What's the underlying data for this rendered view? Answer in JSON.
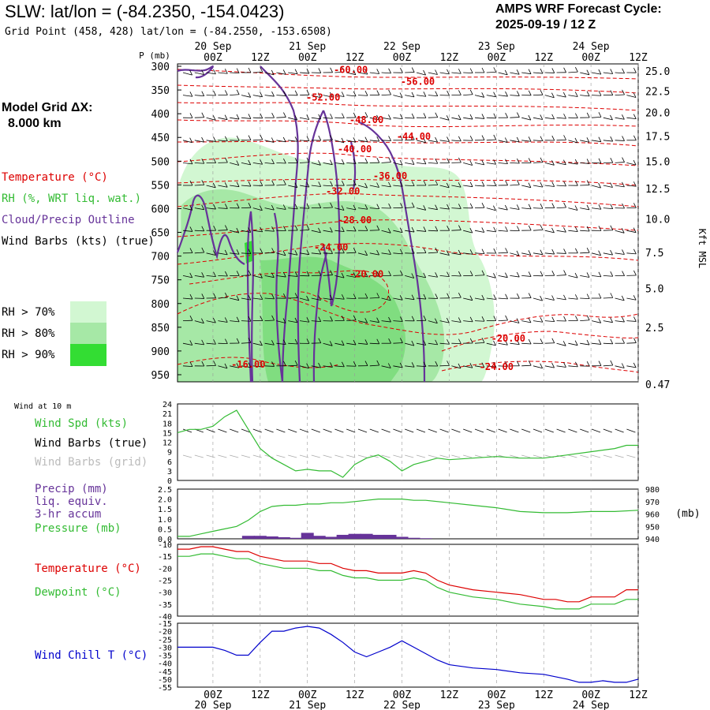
{
  "header": {
    "title": "SLW:  lat/lon = (-84.2350, -154.0423)",
    "grid_point": "Grid Point (458, 428) lat/lon = (-84.2550, -153.6508)",
    "cycle_line1": "AMPS WRF Forecast Cycle:",
    "cycle_line2": "2025-09-19 / 12  Z"
  },
  "sidebar": {
    "model_grid_label": "Model Grid ΔX:",
    "model_grid_value": "8.000 km",
    "temperature_label": "Temperature (°C)",
    "rh_label": "RH (%, WRT liq. wat.)",
    "cloud_label": "Cloud/Precip Outline",
    "wind_barbs_label": "Wind Barbs (kts) (true)",
    "rh_legend": [
      {
        "label": "RH > 70%",
        "color": "#d2f7d2"
      },
      {
        "label": "RH > 80%",
        "color": "#a6e8a6"
      },
      {
        "label": "RH > 90%",
        "color": "#33dd33"
      }
    ]
  },
  "colors": {
    "temperature": "#dd0000",
    "rh": "#33bb33",
    "cloud": "#663399",
    "wind": "#000000",
    "wind_grid": "#aaaaaa",
    "wind_chill": "#0000cc",
    "precip": "#663399"
  },
  "time_axis": {
    "ticks": [
      "00Z",
      "12Z",
      "00Z",
      "12Z",
      "00Z",
      "12Z",
      "00Z",
      "12Z",
      "00Z",
      "12Z"
    ],
    "tick_hours": [
      12,
      24,
      36,
      48,
      60,
      72,
      84,
      96,
      108,
      120
    ],
    "date_labels": [
      {
        "label": "20 Sep",
        "hour": 12
      },
      {
        "label": "21 Sep",
        "hour": 36
      },
      {
        "label": "22 Sep",
        "hour": 60
      },
      {
        "label": "23 Sep",
        "hour": 84
      },
      {
        "label": "24 Sep",
        "hour": 108
      }
    ],
    "hour_range": [
      3,
      120
    ]
  },
  "chart_data": [
    {
      "type": "contour",
      "title": "Vertical cross-section",
      "ylabel": "P (mb)",
      "y2label": "Kft MSL",
      "pressure_ticks": [
        300,
        350,
        400,
        450,
        500,
        550,
        600,
        650,
        700,
        750,
        800,
        850,
        900,
        950
      ],
      "pressure_range": [
        295,
        965
      ],
      "height_ticks": [
        {
          "label": "25.0",
          "p": 310
        },
        {
          "label": "22.5",
          "p": 352
        },
        {
          "label": "20.0",
          "p": 397
        },
        {
          "label": "17.5",
          "p": 447
        },
        {
          "label": "15.0",
          "p": 500
        },
        {
          "label": "12.5",
          "p": 558
        },
        {
          "label": "10.0",
          "p": 622
        },
        {
          "label": "7.5",
          "p": 692
        },
        {
          "label": "5.0",
          "p": 768
        },
        {
          "label": "2.5",
          "p": 850
        },
        {
          "label": "0.47",
          "p": 970
        }
      ],
      "temperature_labels": [
        {
          "value": "-60.00",
          "hour": 47,
          "p": 314
        },
        {
          "value": "-56.00",
          "hour": 64,
          "p": 339
        },
        {
          "value": "-52.00",
          "hour": 40,
          "p": 372
        },
        {
          "value": "-48.00",
          "hour": 51,
          "p": 420
        },
        {
          "value": "-44.00",
          "hour": 63,
          "p": 455
        },
        {
          "value": "-40.00",
          "hour": 48,
          "p": 481
        },
        {
          "value": "-36.00",
          "hour": 57,
          "p": 538
        },
        {
          "value": "-32.00",
          "hour": 45,
          "p": 570
        },
        {
          "value": "-28.00",
          "hour": 48,
          "p": 631
        },
        {
          "value": "-24.00",
          "hour": 42,
          "p": 688
        },
        {
          "value": "-20.00",
          "hour": 51,
          "p": 745
        },
        {
          "value": "-20.00",
          "hour": 87,
          "p": 880
        },
        {
          "value": "-24.00",
          "hour": 84,
          "p": 940
        },
        {
          "value": "-16.00",
          "hour": 21,
          "p": 935
        }
      ]
    },
    {
      "type": "line",
      "title": "Wind at 10 m",
      "label_lines": [
        "Wind Spd (kts)",
        "Wind Barbs (true)",
        "Wind Barbs (grid)"
      ],
      "ylim": [
        0,
        24
      ],
      "yticks": [
        0,
        3,
        6,
        9,
        12,
        15,
        18,
        21,
        24
      ],
      "series": [
        {
          "name": "Wind Spd (kts)",
          "x": [
            3,
            6,
            9,
            12,
            15,
            18,
            21,
            24,
            27,
            30,
            33,
            36,
            39,
            42,
            45,
            48,
            51,
            54,
            57,
            60,
            63,
            66,
            69,
            72,
            78,
            84,
            90,
            96,
            102,
            108,
            114,
            117,
            120
          ],
          "values": [
            15,
            16,
            16,
            17,
            20,
            22,
            16,
            10,
            7,
            5,
            3,
            3.5,
            3,
            3,
            1,
            5,
            7,
            8,
            6,
            3,
            5,
            6,
            7,
            6.5,
            7,
            7.5,
            7,
            7,
            8,
            9,
            10,
            11,
            11
          ]
        }
      ]
    },
    {
      "type": "bar+line",
      "title": "Precip / Pressure",
      "label_lines": [
        "Precip (mm)",
        "liq. equiv.",
        "3-hr accum",
        "Pressure (mb)"
      ],
      "ylim": [
        0,
        2.5
      ],
      "yticks": [
        "0.0",
        "0.5",
        "1.0",
        "1.5",
        "2.0",
        "2.5"
      ],
      "y2lim": [
        940,
        980
      ],
      "y2ticks": [
        940,
        950,
        960,
        970,
        980
      ],
      "y2label": "(mb)",
      "precip": {
        "x": [
          21,
          24,
          27,
          30,
          33,
          36,
          39,
          42,
          45,
          48,
          51,
          54,
          57,
          60,
          63,
          66
        ],
        "values": [
          0.15,
          0.15,
          0.12,
          0.08,
          0.05,
          0.3,
          0.15,
          0.1,
          0.2,
          0.25,
          0.25,
          0.2,
          0.2,
          0.1,
          0.05,
          0.03
        ]
      },
      "pressure": {
        "x": [
          3,
          6,
          9,
          12,
          15,
          18,
          21,
          24,
          27,
          30,
          33,
          36,
          39,
          42,
          45,
          48,
          51,
          54,
          57,
          60,
          63,
          66,
          72,
          78,
          84,
          90,
          96,
          102,
          108,
          114,
          120
        ],
        "values": [
          942,
          942,
          944,
          946,
          948,
          950,
          955,
          962,
          966,
          967,
          967,
          968,
          968,
          969,
          969,
          970,
          971,
          972,
          972,
          972,
          971,
          971,
          969,
          967,
          965,
          962,
          961,
          961,
          962,
          962,
          963
        ]
      }
    },
    {
      "type": "line",
      "title": "Temperature / Dewpoint",
      "label_lines": [
        "Temperature (°C)",
        "Dewpoint (°C)"
      ],
      "ylim": [
        -40,
        -10
      ],
      "yticks": [
        -40,
        -35,
        -30,
        -25,
        -20,
        -15,
        -10
      ],
      "series": [
        {
          "name": "Temperature (°C)",
          "x": [
            3,
            6,
            9,
            12,
            15,
            18,
            21,
            24,
            27,
            30,
            33,
            36,
            39,
            42,
            45,
            48,
            51,
            54,
            57,
            60,
            63,
            66,
            69,
            72,
            78,
            84,
            90,
            96,
            99,
            102,
            105,
            108,
            111,
            114,
            117,
            120
          ],
          "values": [
            -12,
            -12,
            -11,
            -11,
            -12,
            -13,
            -13,
            -15,
            -16,
            -17,
            -17,
            -17,
            -18,
            -18,
            -20,
            -21,
            -21,
            -22,
            -22,
            -22,
            -21,
            -22,
            -25,
            -27,
            -29,
            -30,
            -31,
            -33,
            -33,
            -34,
            -34,
            -32,
            -32,
            -32,
            -29,
            -29
          ]
        },
        {
          "name": "Dewpoint (°C)",
          "x": [
            3,
            6,
            9,
            12,
            15,
            18,
            21,
            24,
            27,
            30,
            33,
            36,
            39,
            42,
            45,
            48,
            51,
            54,
            57,
            60,
            63,
            66,
            69,
            72,
            78,
            84,
            90,
            96,
            99,
            102,
            105,
            108,
            111,
            114,
            117,
            120
          ],
          "values": [
            -15,
            -15,
            -14,
            -14,
            -15,
            -16,
            -16,
            -18,
            -19,
            -20,
            -20,
            -20,
            -21,
            -21,
            -23,
            -24,
            -24,
            -25,
            -25,
            -25,
            -24,
            -25,
            -28,
            -30,
            -32,
            -33,
            -35,
            -36,
            -37,
            -37,
            -37,
            -35,
            -35,
            -35,
            -33,
            -33
          ]
        }
      ]
    },
    {
      "type": "line",
      "title": "Wind Chill",
      "label_lines": [
        "Wind Chill T (°C)"
      ],
      "ylim": [
        -55,
        -15
      ],
      "yticks": [
        -55,
        -50,
        -45,
        -40,
        -35,
        -30,
        -25,
        -20,
        -15
      ],
      "series": [
        {
          "name": "Wind Chill T (°C)",
          "x": [
            3,
            6,
            9,
            12,
            15,
            18,
            21,
            24,
            27,
            30,
            33,
            36,
            39,
            42,
            45,
            48,
            51,
            54,
            57,
            60,
            63,
            66,
            69,
            72,
            78,
            84,
            90,
            96,
            102,
            105,
            108,
            111,
            114,
            117,
            120
          ],
          "values": [
            -30,
            -30,
            -30,
            -30,
            -32,
            -35,
            -35,
            -27,
            -20,
            -20,
            -18,
            -17,
            -18,
            -22,
            -27,
            -33,
            -36,
            -33,
            -30,
            -26,
            -30,
            -34,
            -38,
            -41,
            -43,
            -44,
            -46,
            -47,
            -50,
            -52,
            -52,
            -51,
            -52,
            -52,
            -50
          ]
        }
      ]
    }
  ]
}
